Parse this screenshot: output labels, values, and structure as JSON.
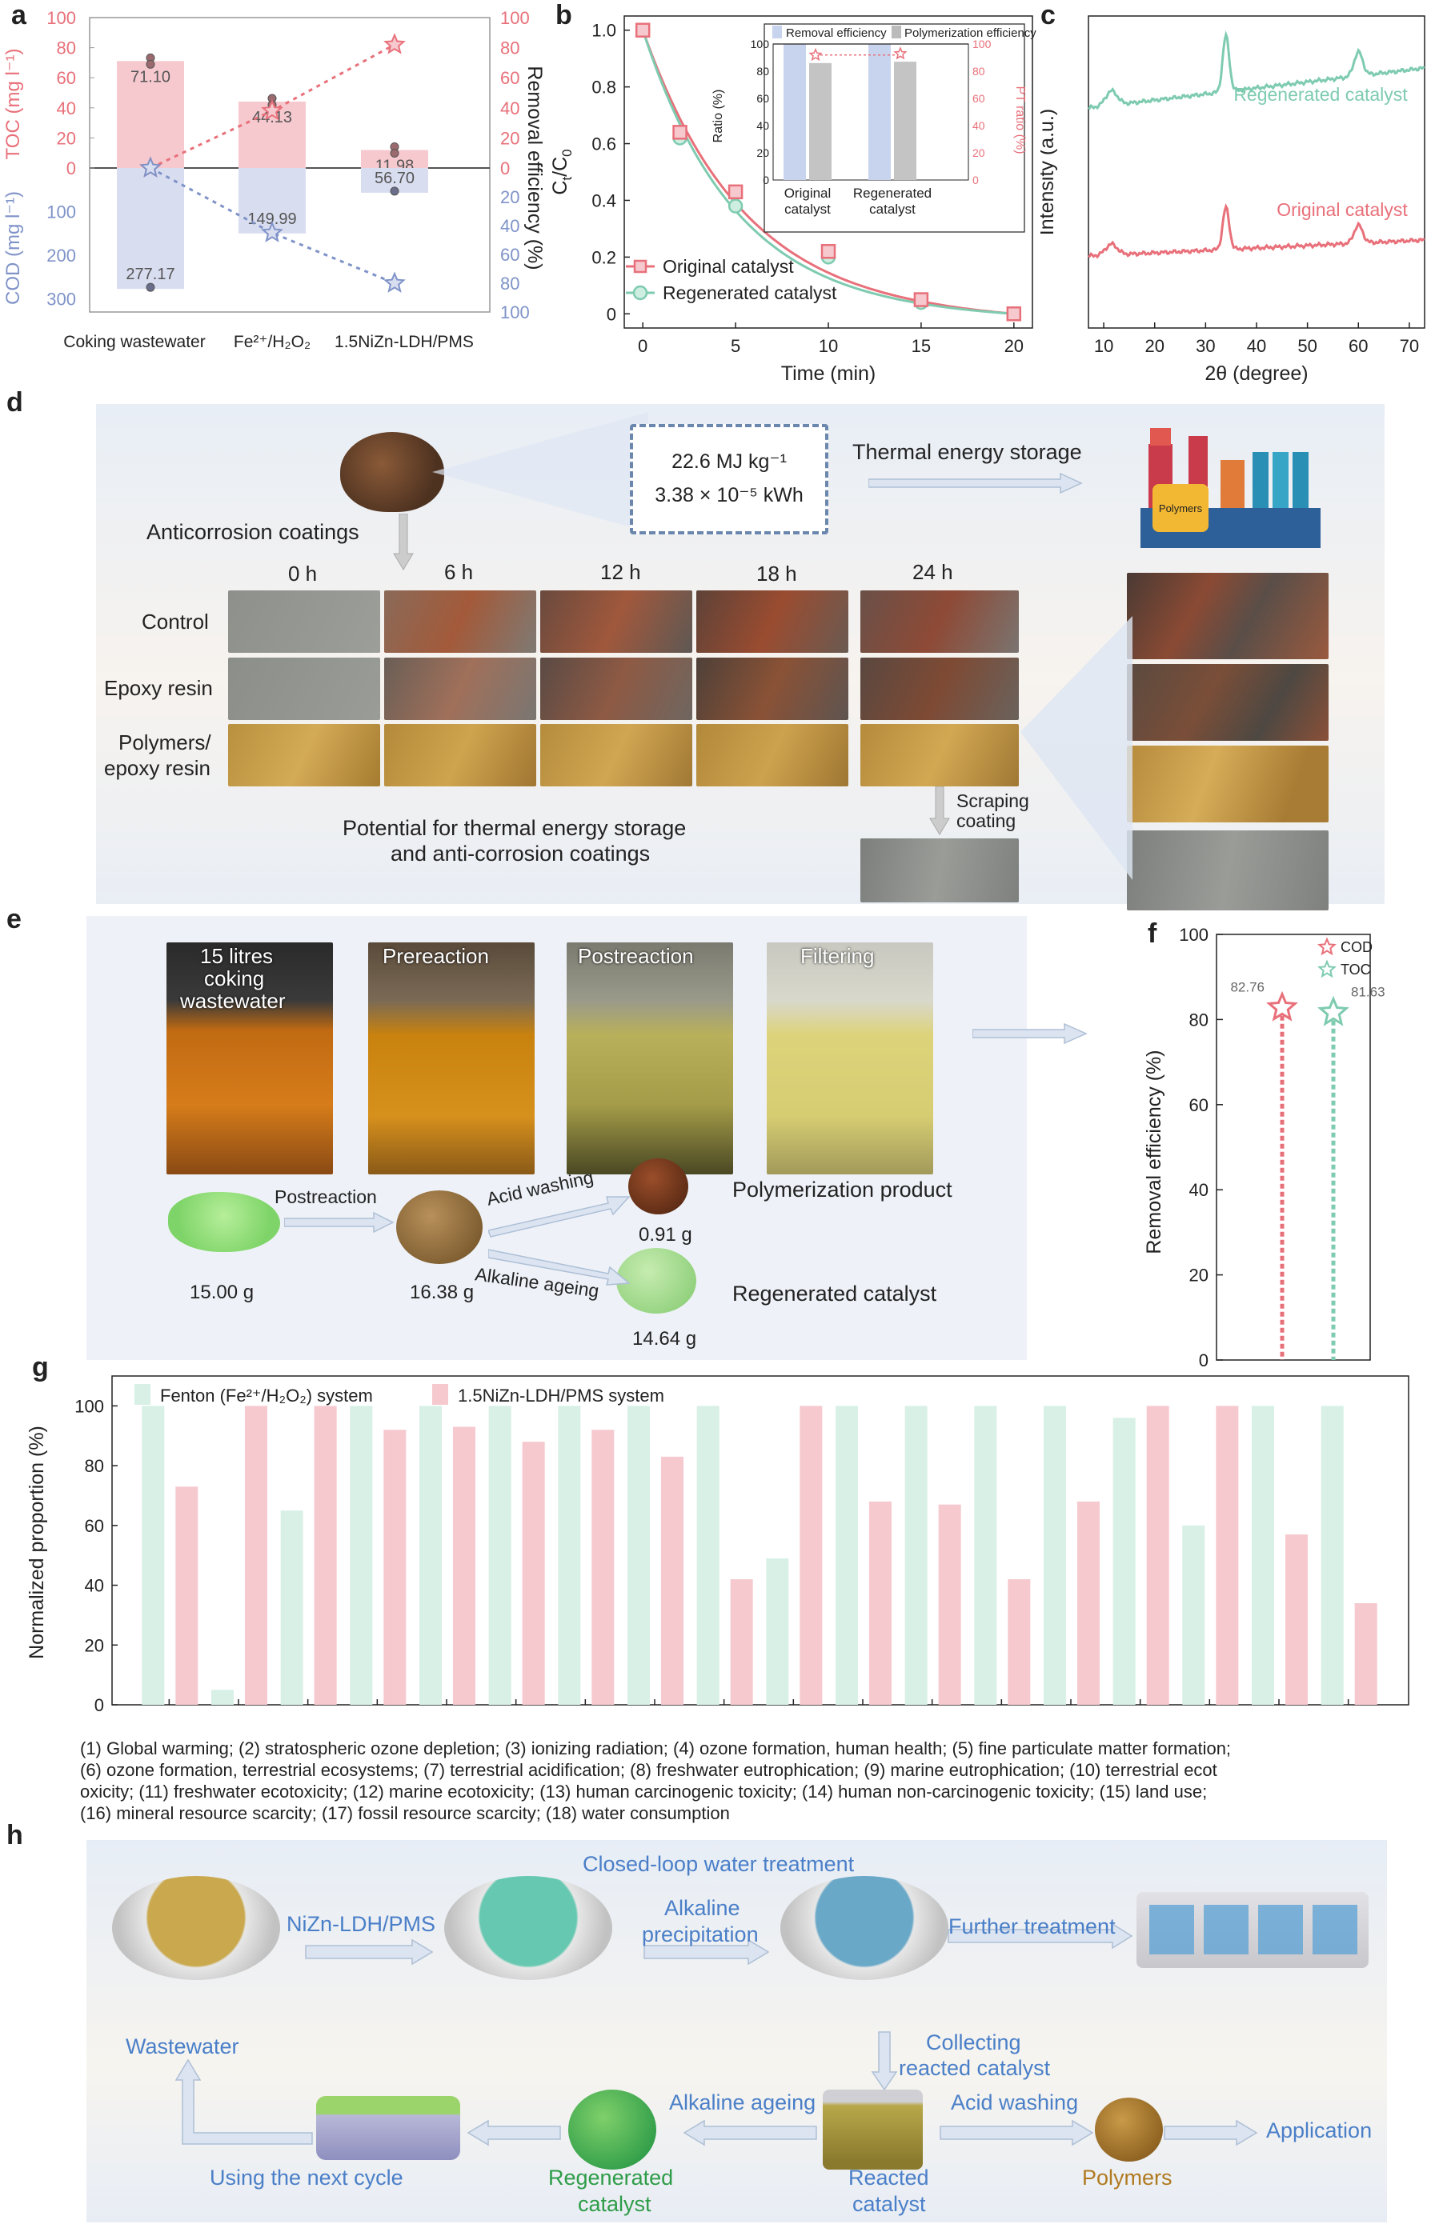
{
  "panel_labels": {
    "a": "a",
    "b": "b",
    "c": "c",
    "d": "d",
    "e": "e",
    "f": "f",
    "g": "g",
    "h": "h"
  },
  "colors": {
    "red": "#e8707a",
    "blue": "#7f93c8",
    "green": "#7ecbb0",
    "pink_bar": "#f6c9cf",
    "mint_bar": "#d8f0e6",
    "accent_blue": "#4a7fc8"
  },
  "chart_data": [
    {
      "id": "a",
      "type": "bar",
      "categories": [
        "Coking wastewater",
        "Fe2+/H2O2",
        "1.5NiZn-LDH/PMS"
      ],
      "series": [
        {
          "name": "TOC (mg l-1)",
          "values": [
            71.1,
            44.13,
            11.98
          ]
        },
        {
          "name": "COD (mg l-1)",
          "values": [
            277.17,
            149.99,
            56.7
          ]
        },
        {
          "name": "Removal efficiency TOC (%)",
          "values": [
            0,
            38,
            82
          ]
        },
        {
          "name": "Removal efficiency COD (%)",
          "values": [
            0,
            45,
            80
          ]
        }
      ],
      "data_labels": [
        "71.10",
        "44.13",
        "11.98",
        "277.17",
        "149.99",
        "56.70"
      ],
      "ylabel_top": "TOC (mg l⁻¹)",
      "ylabel_bottom": "COD (mg l⁻¹)",
      "ylabel_right": "Removal efficiency (%)",
      "ticks_top": [
        "100",
        "80",
        "60",
        "40",
        "20",
        "0"
      ],
      "ticks_bottom": [
        "100",
        "200",
        "300"
      ],
      "ticks_right_top": [
        "100",
        "80",
        "60",
        "40",
        "20",
        "0"
      ],
      "ticks_right_bottom": [
        "20",
        "40",
        "60",
        "80",
        "100"
      ],
      "cat_labels": [
        "Coking wastewater",
        "Fe²⁺/H₂O₂",
        "1.5NiZn-LDH/PMS"
      ]
    },
    {
      "id": "b",
      "type": "line",
      "x": [
        0,
        2,
        5,
        10,
        15,
        20
      ],
      "series": [
        {
          "name": "Original catalyst",
          "values": [
            1.0,
            0.64,
            0.43,
            0.22,
            0.05,
            0.0
          ]
        },
        {
          "name": "Regenerated catalyst",
          "values": [
            1.0,
            0.62,
            0.38,
            0.2,
            0.04,
            0.0
          ]
        }
      ],
      "xlabel": "Time (min)",
      "ylabel": "Ct/C0",
      "xticks": [
        "0",
        "5",
        "10",
        "15",
        "20"
      ],
      "yticks": [
        "1.0",
        "0.8",
        "0.6",
        "0.4",
        "0.2",
        "0"
      ],
      "xlim": [
        -1,
        21
      ],
      "ylim": [
        -0.05,
        1.05
      ],
      "inset": {
        "categories": [
          "Original\ncatalyst",
          "Regenerated\ncatalyst"
        ],
        "removal_efficiency": [
          100,
          100
        ],
        "polymerization_efficiency": [
          86,
          87
        ],
        "legend": [
          "Removal efficiency",
          "Polymerization efficiency"
        ],
        "ylabel_left": "Ratio (%)",
        "ylabel_right": "PT ratio (%)",
        "yticks_left": [
          "100",
          "80",
          "60",
          "40",
          "20",
          "0"
        ],
        "yticks_right": [
          "100",
          "80",
          "60",
          "40",
          "20",
          "0"
        ],
        "cat_lines": [
          "Original",
          "catalyst",
          "Regenerated",
          "catalyst"
        ]
      }
    },
    {
      "id": "c",
      "type": "line",
      "xlabel": "2θ (degree)",
      "ylabel": "Intensity (a.u.)",
      "xticks": [
        "10",
        "20",
        "30",
        "40",
        "50",
        "60",
        "70"
      ],
      "xlim": [
        7,
        73
      ],
      "series": [
        {
          "name": "Regenerated catalyst",
          "peaks": [
            11.5,
            34,
            60
          ]
        },
        {
          "name": "Original catalyst",
          "peaks": [
            11.5,
            34,
            60
          ]
        }
      ]
    },
    {
      "id": "f",
      "type": "scatter",
      "series": [
        {
          "name": "COD",
          "values": [
            82.76
          ]
        },
        {
          "name": "TOC",
          "values": [
            81.63
          ]
        }
      ],
      "ylabel": "Removal efficiency (%)",
      "yticks": [
        "100",
        "80",
        "60",
        "40",
        "20",
        "0"
      ],
      "ylim": [
        0,
        100
      ],
      "data_labels": [
        "82.76",
        "81.63"
      ]
    },
    {
      "id": "g",
      "type": "bar",
      "categories": [
        "1",
        "2",
        "3",
        "4",
        "5",
        "6",
        "7",
        "8",
        "9",
        "10",
        "11",
        "12",
        "13",
        "14",
        "15",
        "16",
        "17",
        "18"
      ],
      "series": [
        {
          "name": "Fenton (Fe2+/H2O2) system",
          "values": [
            100,
            5,
            65,
            100,
            100,
            100,
            100,
            100,
            100,
            49,
            100,
            100,
            100,
            100,
            96,
            60,
            100,
            100
          ]
        },
        {
          "name": "1.5NiZn-LDH/PMS system",
          "values": [
            73,
            100,
            100,
            92,
            93,
            88,
            92,
            83,
            42,
            100,
            68,
            67,
            42,
            68,
            100,
            100,
            57,
            34
          ]
        }
      ],
      "ylabel": "Normalized proportion (%)",
      "yticks": [
        "100",
        "80",
        "60",
        "40",
        "20",
        "0"
      ],
      "ylim": [
        0,
        110
      ],
      "legend": [
        "Fenton (Fe²⁺/H₂O₂) system",
        "1.5NiZn-LDH/PMS system"
      ]
    }
  ],
  "panel_d": {
    "energy_line1": "22.6 MJ kg⁻¹",
    "energy_line2": "3.38 × 10⁻⁵ kWh",
    "thermal": "Thermal energy storage",
    "anticorrosion": "Anticorrosion coatings",
    "factory_label": "Polymers",
    "times": [
      "0 h",
      "6 h",
      "12 h",
      "18 h",
      "24 h"
    ],
    "rows": [
      "Control",
      "Epoxy resin",
      "Polymers/\nepoxy resin"
    ],
    "row1": "Control",
    "row2": "Epoxy resin",
    "row3a": "Polymers/",
    "row3b": "epoxy resin",
    "scraping1": "Scraping",
    "scraping2": "coating",
    "potential1": "Potential for thermal energy storage",
    "potential2": "and anti-corrosion coatings"
  },
  "panel_e": {
    "photo1a": "15 litres",
    "photo1b": "coking",
    "photo1c": "wastewater",
    "photo2": "Prereaction",
    "photo3": "Postreaction",
    "photo4": "Filtering",
    "postreaction": "Postreaction",
    "acid": "Acid washing",
    "alkaline": "Alkaline ageing",
    "m1": "15.00 g",
    "m2": "16.38 g",
    "m3": "0.91 g",
    "m4": "14.64 g",
    "product": "Polymerization product",
    "regen": "Regenerated catalyst"
  },
  "panel_f_legend": [
    "COD",
    "TOC"
  ],
  "panel_g_caption": [
    "(1) Global warming; (2) stratospheric ozone depletion; (3) ionizing radiation; (4) ozone formation, human health; (5) fine particulate matter formation;",
    " (6) ozone formation, terrestrial ecosystems; (7) terrestrial acidification; (8) freshwater eutrophication; (9) marine eutrophication; (10) terrestrial ecot",
    "oxicity; (11) freshwater ecotoxicity; (12) marine ecotoxicity; (13) human carcinogenic toxicity; (14) human non-carcinogenic toxicity; (15) land use;",
    "(16) mineral resource scarcity; (17) fossil resource scarcity; (18) water consumption"
  ],
  "panel_h": {
    "title": "Closed-loop water treatment",
    "niZn": "NiZn-LDH/PMS",
    "alk_precip1": "Alkaline",
    "alk_precip2": "precipitation",
    "further": "Further treatment",
    "wastewater": "Wastewater",
    "collect1": "Collecting",
    "collect2": "reacted catalyst",
    "alk_ageing": "Alkaline ageing",
    "acid": "Acid washing",
    "application": "Application",
    "next": "Using the next cycle",
    "regen1": "Regenerated",
    "regen2": "catalyst",
    "reacted1": "Reacted",
    "reacted2": "catalyst",
    "polymers": "Polymers"
  }
}
